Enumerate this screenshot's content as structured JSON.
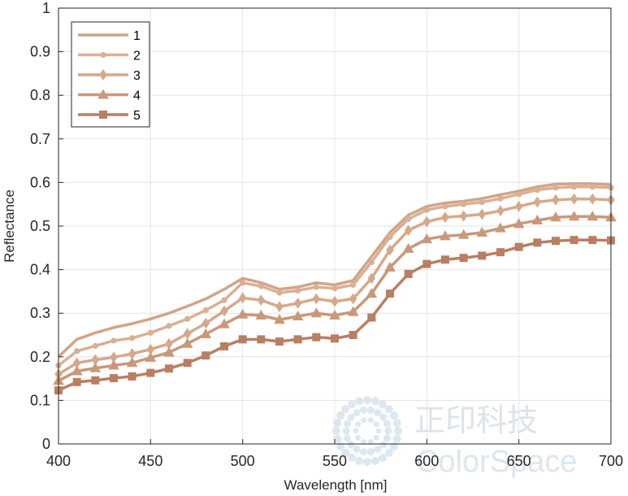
{
  "chart_data": {
    "type": "line",
    "xlabel": "Wavelength [nm]",
    "ylabel": "Reflectance",
    "xlim": [
      400,
      700
    ],
    "ylim": [
      0,
      1
    ],
    "xticks": [
      400,
      450,
      500,
      550,
      600,
      650,
      700
    ],
    "yticks": [
      0,
      0.1,
      0.2,
      0.3,
      0.4,
      0.5,
      0.6,
      0.7,
      0.8,
      0.9,
      1
    ],
    "ytick_labels": [
      "0",
      "0.1",
      "0.2",
      "0.3",
      "0.4",
      "0.5",
      "0.6",
      "0.7",
      "0.8",
      "0.9",
      "1"
    ],
    "grid": true,
    "legend_position": "top-left",
    "x": [
      400,
      410,
      420,
      430,
      440,
      450,
      460,
      470,
      480,
      490,
      500,
      510,
      520,
      530,
      540,
      550,
      560,
      570,
      580,
      590,
      600,
      610,
      620,
      630,
      640,
      650,
      660,
      670,
      680,
      690,
      700
    ],
    "series": [
      {
        "name": "1",
        "marker": "none",
        "color": "#d1a486",
        "values": [
          0.2,
          0.24,
          0.255,
          0.267,
          0.276,
          0.287,
          0.3,
          0.316,
          0.333,
          0.355,
          0.38,
          0.37,
          0.355,
          0.36,
          0.37,
          0.365,
          0.375,
          0.43,
          0.485,
          0.525,
          0.545,
          0.553,
          0.557,
          0.563,
          0.572,
          0.58,
          0.59,
          0.596,
          0.597,
          0.597,
          0.595
        ]
      },
      {
        "name": "2",
        "marker": "dot",
        "color": "#d9b094",
        "values": [
          0.18,
          0.213,
          0.225,
          0.237,
          0.243,
          0.255,
          0.271,
          0.287,
          0.307,
          0.33,
          0.37,
          0.362,
          0.347,
          0.352,
          0.36,
          0.357,
          0.365,
          0.417,
          0.475,
          0.516,
          0.537,
          0.545,
          0.55,
          0.555,
          0.563,
          0.573,
          0.583,
          0.588,
          0.59,
          0.59,
          0.588
        ]
      },
      {
        "name": "3",
        "marker": "diamond",
        "color": "#d4a98b",
        "values": [
          0.16,
          0.186,
          0.193,
          0.199,
          0.207,
          0.217,
          0.23,
          0.253,
          0.277,
          0.305,
          0.335,
          0.33,
          0.315,
          0.323,
          0.333,
          0.327,
          0.333,
          0.38,
          0.445,
          0.49,
          0.51,
          0.52,
          0.523,
          0.527,
          0.535,
          0.545,
          0.555,
          0.56,
          0.562,
          0.562,
          0.56
        ]
      },
      {
        "name": "4",
        "marker": "triangle",
        "color": "#c8987a",
        "values": [
          0.145,
          0.167,
          0.174,
          0.18,
          0.186,
          0.198,
          0.21,
          0.23,
          0.252,
          0.275,
          0.297,
          0.295,
          0.285,
          0.293,
          0.3,
          0.295,
          0.303,
          0.345,
          0.405,
          0.448,
          0.47,
          0.477,
          0.48,
          0.485,
          0.495,
          0.505,
          0.513,
          0.52,
          0.522,
          0.522,
          0.52
        ]
      },
      {
        "name": "5",
        "marker": "square",
        "color": "#b97f63",
        "values": [
          0.123,
          0.142,
          0.146,
          0.151,
          0.155,
          0.163,
          0.173,
          0.186,
          0.203,
          0.224,
          0.24,
          0.24,
          0.235,
          0.24,
          0.245,
          0.242,
          0.25,
          0.29,
          0.345,
          0.39,
          0.413,
          0.423,
          0.427,
          0.432,
          0.44,
          0.452,
          0.462,
          0.466,
          0.468,
          0.468,
          0.467
        ]
      }
    ]
  },
  "watermark": {
    "cn_text": "正印科技",
    "en_text": "ColorSpace"
  }
}
